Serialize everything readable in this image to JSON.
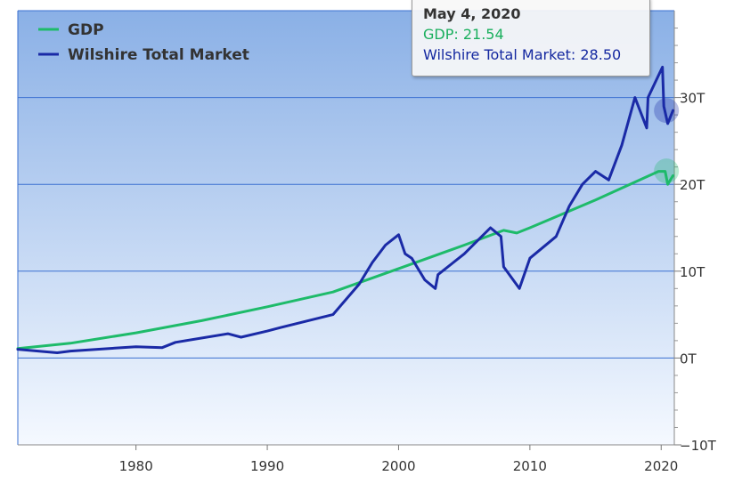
{
  "colors": {
    "gdp": "#1ebb6a",
    "wilshire": "#1a2aa6",
    "grid": "#3a6fd0",
    "plot_top": "#8ab0e6",
    "plot_bottom": "#f5f9ff"
  },
  "legend": {
    "gdp": "GDP",
    "wilshire": "Wilshire Total Market"
  },
  "tooltip": {
    "date": "May 4, 2020",
    "gdp_line": "GDP: 21.54",
    "wilshire_line": "Wilshire Total Market: 28.50"
  },
  "chart_data": {
    "type": "line",
    "x_range": [
      1971,
      2021
    ],
    "y_range": [
      -10,
      40
    ],
    "grid": true,
    "legend_position": "top-left",
    "x_ticks": [
      {
        "value": 1980,
        "label": "1980"
      },
      {
        "value": 1990,
        "label": "1990"
      },
      {
        "value": 2000,
        "label": "2000"
      },
      {
        "value": 2010,
        "label": "2010"
      },
      {
        "value": 2020,
        "label": "2020"
      }
    ],
    "y_ticks": [
      {
        "value": -10,
        "label": "−10T"
      },
      {
        "value": 0,
        "label": "0T"
      },
      {
        "value": 10,
        "label": "10T"
      },
      {
        "value": 20,
        "label": "20T"
      },
      {
        "value": 30,
        "label": "30T"
      }
    ],
    "series": [
      {
        "name": "GDP",
        "x": [
          1971,
          1975,
          1980,
          1985,
          1990,
          1995,
          2000,
          2005,
          2008,
          2009,
          2010,
          2015,
          2019.8,
          2020.3,
          2020.5,
          2020.9
        ],
        "y": [
          1.1,
          1.7,
          2.9,
          4.3,
          5.9,
          7.6,
          10.3,
          13.0,
          14.7,
          14.4,
          15.0,
          18.2,
          21.5,
          21.5,
          20.0,
          21.0
        ]
      },
      {
        "name": "Wilshire Total Market",
        "x": [
          1971,
          1974,
          1975,
          1980,
          1982,
          1983,
          1987,
          1988,
          1990,
          1991,
          1995,
          1997,
          1998,
          1999,
          2000,
          2000.5,
          2001,
          2002,
          2002.8,
          2003,
          2005,
          2007,
          2007.8,
          2008,
          2009.2,
          2010,
          2012,
          2013,
          2014,
          2015,
          2016,
          2017,
          2018,
          2018.9,
          2019,
          2020.1,
          2020.2,
          2020.5,
          2020.9
        ],
        "y": [
          1.0,
          0.6,
          0.8,
          1.3,
          1.2,
          1.8,
          2.8,
          2.4,
          3.1,
          3.5,
          5.0,
          8.5,
          11.0,
          13.0,
          14.2,
          12.0,
          11.5,
          9.0,
          8.0,
          9.6,
          12.0,
          15.0,
          14.0,
          10.5,
          8.0,
          11.5,
          14.0,
          17.5,
          20.0,
          21.5,
          20.5,
          24.5,
          30.0,
          26.5,
          30.0,
          33.5,
          29.0,
          27.0,
          28.5
        ]
      }
    ],
    "highlighted_x": 2020.4
  }
}
